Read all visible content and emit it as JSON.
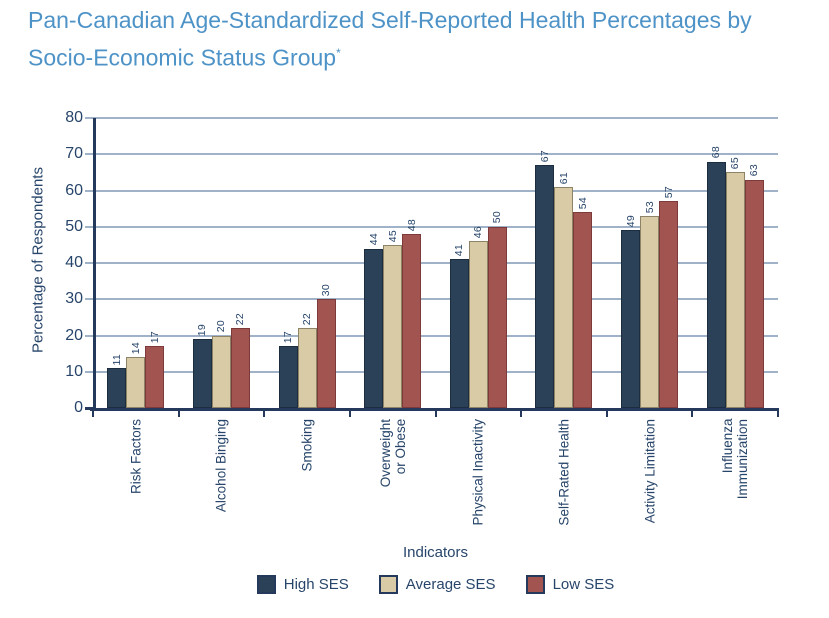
{
  "title": {
    "line1": "Pan-Canadian Age-Standardized Self-Reported Health Percentages by",
    "line2": "Socio-Economic Status Group",
    "footnote_marker": "*"
  },
  "chart_data": {
    "type": "bar",
    "categories": [
      "Risk Factors",
      "Alcohol Binging",
      "Smoking",
      "Overweight\nor Obese",
      "Physical Inactivity",
      "Self-Rated Health",
      "Activity Limitation",
      "Influenza\nImmunization"
    ],
    "series": [
      {
        "name": "High SES",
        "color": "#2b4158",
        "border": "#1c2d40",
        "values": [
          11,
          19,
          17,
          44,
          41,
          67,
          49,
          68
        ]
      },
      {
        "name": "Average SES",
        "color": "#d9cba6",
        "border": "#8d8468",
        "values": [
          14,
          20,
          22,
          45,
          46,
          61,
          53,
          65
        ]
      },
      {
        "name": "Low SES",
        "color": "#a25451",
        "border": "#7c3b3a",
        "values": [
          17,
          22,
          30,
          48,
          50,
          54,
          57,
          63
        ]
      }
    ],
    "xlabel": "Indicators",
    "ylabel": "Percentage of Respondents",
    "ylim": [
      0,
      80
    ],
    "yticks": [
      0,
      10,
      20,
      30,
      40,
      50,
      60,
      70,
      80
    ],
    "grid": "horizontal",
    "legend_position": "bottom",
    "bar_value_labels": "rotated"
  },
  "colors": {
    "title": "#4e93c7",
    "axis": "#24395b",
    "text": "#27456a",
    "gridline": "#9fb2c8",
    "background": "#ffffff"
  }
}
